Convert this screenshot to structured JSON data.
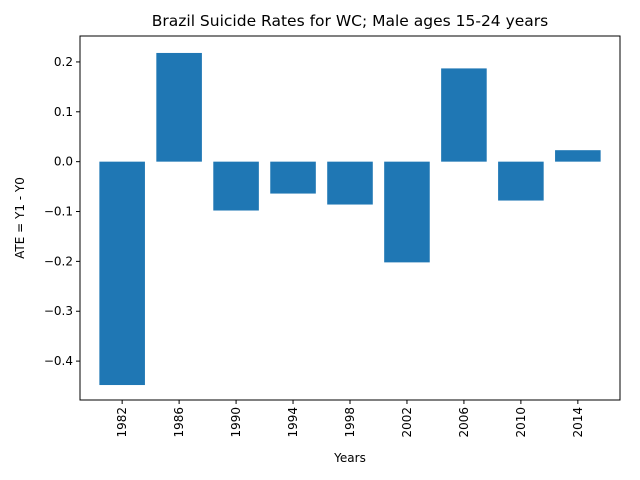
{
  "chart_data": {
    "type": "bar",
    "title": "Brazil Suicide Rates for WC; Male ages 15-24 years",
    "xlabel": "Years",
    "ylabel": "ATE = Y1 - Y0",
    "categories": [
      "1982",
      "1986",
      "1990",
      "1994",
      "1998",
      "2002",
      "2006",
      "2010",
      "2014"
    ],
    "values": [
      -0.448,
      0.218,
      -0.098,
      -0.064,
      -0.086,
      -0.202,
      0.187,
      -0.078,
      0.023
    ],
    "ylim": [
      -0.478,
      0.252
    ],
    "yticks": [
      -0.4,
      -0.3,
      -0.2,
      -0.1,
      0.0,
      0.1,
      0.2
    ],
    "ytick_labels": [
      "−0.4",
      "−0.3",
      "−0.2",
      "−0.1",
      "0.0",
      "0.1",
      "0.2"
    ],
    "bar_color": "#1f77b4",
    "grid": false,
    "legend": "none"
  }
}
